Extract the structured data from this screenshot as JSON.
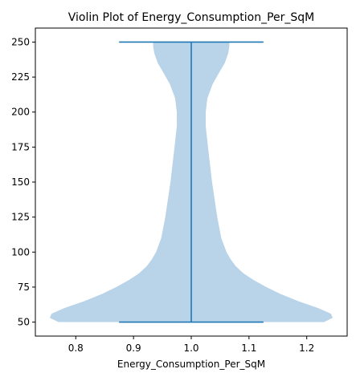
{
  "chart_data": {
    "type": "violin",
    "title": "Violin Plot of Energy_Consumption_Per_SqM",
    "xlabel": "Energy_Consumption_Per_SqM",
    "ylabel": "",
    "xlim": [
      0.73,
      1.27
    ],
    "ylim": [
      40,
      260
    ],
    "xticks": [
      0.8,
      0.9,
      1.0,
      1.1,
      1.2
    ],
    "xtick_labels": [
      "0.8",
      "0.9",
      "1.0",
      "1.1",
      "1.2"
    ],
    "yticks": [
      50,
      75,
      100,
      125,
      150,
      175,
      200,
      225,
      250
    ],
    "ytick_labels": [
      "50",
      "75",
      "100",
      "125",
      "150",
      "175",
      "200",
      "225",
      "250"
    ],
    "grid": false,
    "position": 1.0,
    "min": 50,
    "max": 250,
    "cap_halfwidth": 0.125,
    "density_profile": [
      {
        "y": 50,
        "halfwidth": 0.23
      },
      {
        "y": 53,
        "halfwidth": 0.245
      },
      {
        "y": 56,
        "halfwidth": 0.242
      },
      {
        "y": 60,
        "halfwidth": 0.22
      },
      {
        "y": 65,
        "halfwidth": 0.185
      },
      {
        "y": 70,
        "halfwidth": 0.155
      },
      {
        "y": 75,
        "halfwidth": 0.13
      },
      {
        "y": 80,
        "halfwidth": 0.108
      },
      {
        "y": 85,
        "halfwidth": 0.09
      },
      {
        "y": 90,
        "halfwidth": 0.077
      },
      {
        "y": 95,
        "halfwidth": 0.068
      },
      {
        "y": 100,
        "halfwidth": 0.061
      },
      {
        "y": 110,
        "halfwidth": 0.052
      },
      {
        "y": 125,
        "halfwidth": 0.045
      },
      {
        "y": 150,
        "halfwidth": 0.036
      },
      {
        "y": 175,
        "halfwidth": 0.029
      },
      {
        "y": 190,
        "halfwidth": 0.025
      },
      {
        "y": 200,
        "halfwidth": 0.025
      },
      {
        "y": 210,
        "halfwidth": 0.028
      },
      {
        "y": 220,
        "halfwidth": 0.037
      },
      {
        "y": 228,
        "halfwidth": 0.048
      },
      {
        "y": 235,
        "halfwidth": 0.058
      },
      {
        "y": 242,
        "halfwidth": 0.064
      },
      {
        "y": 247,
        "halfwidth": 0.066
      },
      {
        "y": 250,
        "halfwidth": 0.066
      }
    ],
    "colors": {
      "body": "#b9d3e8",
      "lines": "#1f77b4"
    }
  }
}
